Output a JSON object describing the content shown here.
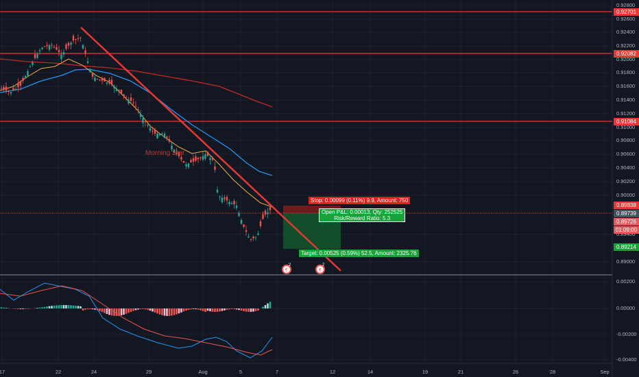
{
  "axis": {
    "price_ticks": [
      "0.92800",
      "0.92600",
      "0.92400",
      "0.92200",
      "0.92000",
      "0.91800",
      "0.91600",
      "0.91400",
      "0.91200",
      "0.91000",
      "0.90800",
      "0.90600",
      "0.90400",
      "0.90200",
      "0.90000",
      "0.89400",
      "0.89000"
    ],
    "macd_ticks": [
      "0.00200",
      "0.00000",
      "-0.00200",
      "-0.00400"
    ],
    "date_ticks": [
      "17",
      "22",
      "24",
      "29",
      "Aug",
      "5",
      "7",
      "12",
      "14",
      "19",
      "21",
      "26",
      "28",
      "Sep"
    ]
  },
  "levels": {
    "l1": "0.92701",
    "l2": "0.92082",
    "l3": "0.91084",
    "stop_price": "0.89838",
    "current": "0.89739",
    "entry": "0.89726",
    "countdown": "01:09:00",
    "target_price": "0.89214"
  },
  "position": {
    "stop_label": "Stop: 0.00099 (0.11%) 9.9, Amount: 750",
    "pnl_label": "Open P&L: 0.00013, Qty: 252525",
    "rr_label": "Risk/Reward Ratio: 5.3",
    "target_label": "Target: 0.00525 (0.59%) 52.5, Amount: 2325.76"
  },
  "annotations": {
    "pattern_label": "Morning Star"
  },
  "events": {
    "e1": "2",
    "e2": "2"
  },
  "colors": {
    "background": "#131722",
    "up": "#26a69a",
    "down": "#ef5350",
    "ema_fast": "#f5b041",
    "ema_mid": "#2196f3",
    "ema_slow": "#c62828",
    "level": "#e53935",
    "target": "#1b5e20",
    "stop": "#b71c1c"
  }
}
